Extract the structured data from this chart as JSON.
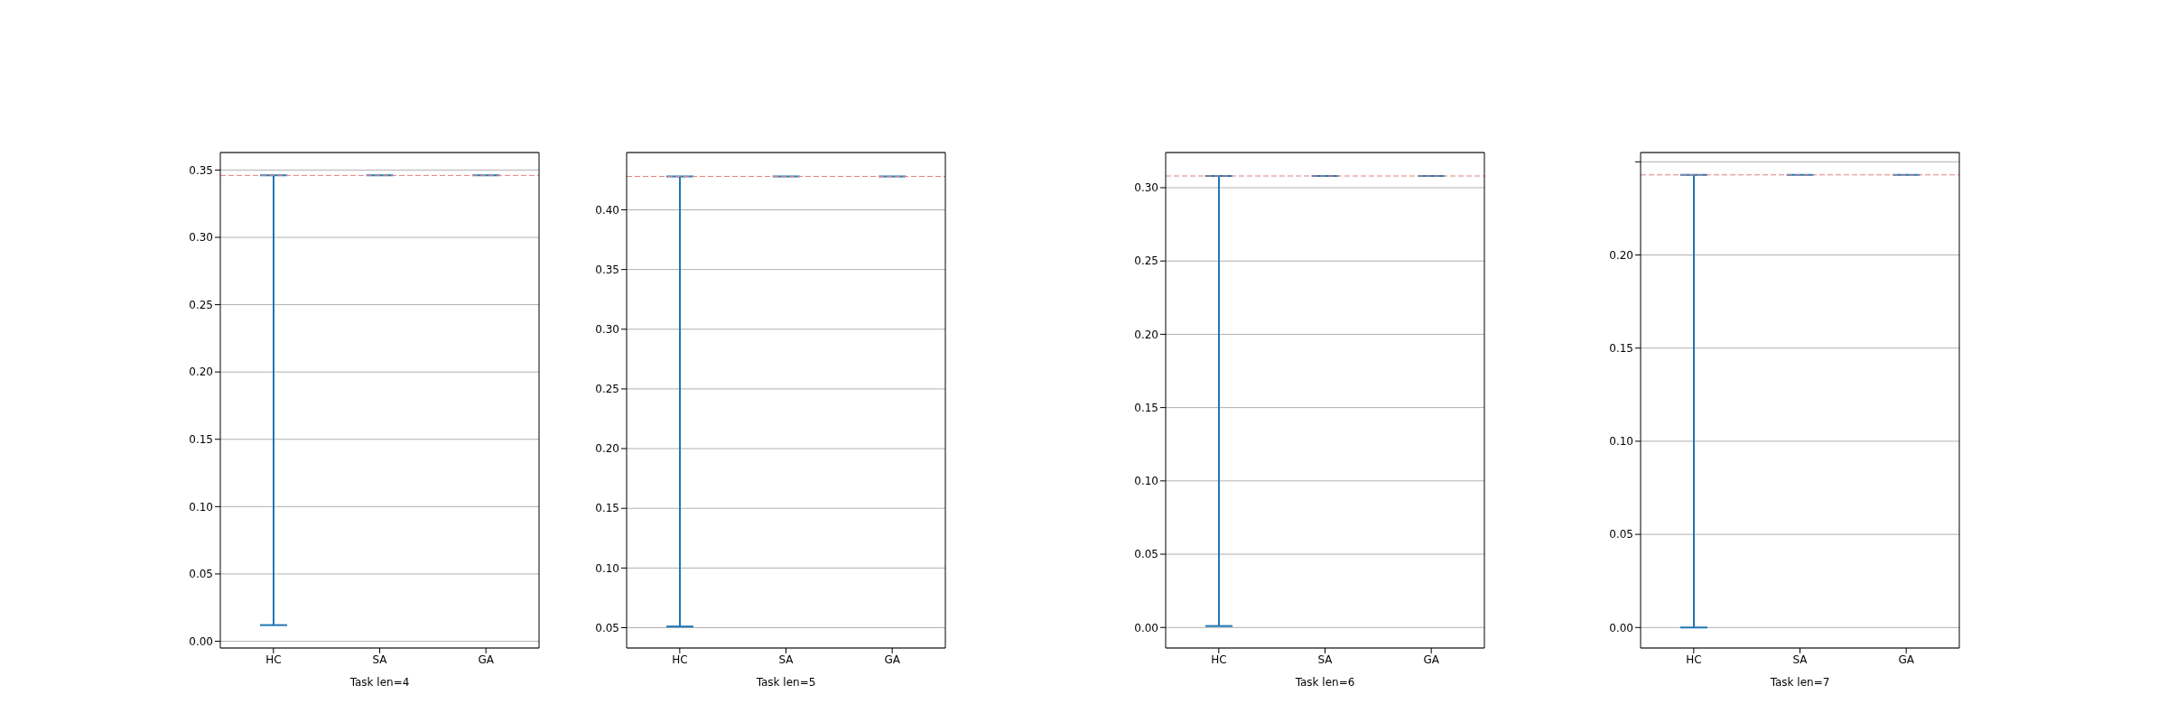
{
  "chart_data": [
    {
      "type": "bar",
      "xlabel": "Task len=4",
      "categories": [
        "HC",
        "SA",
        "GA"
      ],
      "series": [
        {
          "color": "#1f77b4",
          "base": [
            0.012,
            0.346,
            0.346
          ],
          "values": [
            0.334,
            0,
            0
          ]
        }
      ],
      "ylim": [
        -0.005,
        0.363
      ],
      "yticks": [
        {
          "value": 0,
          "label": "0.00"
        },
        {
          "value": 0.05,
          "label": "0.05"
        },
        {
          "value": 0.1,
          "label": "0.10"
        },
        {
          "value": 0.15,
          "label": "0.15"
        },
        {
          "value": 0.2,
          "label": "0.20"
        },
        {
          "value": 0.25,
          "label": "0.25"
        },
        {
          "value": 0.3,
          "label": "0.30"
        },
        {
          "value": 0.35,
          "label": "0.35"
        }
      ],
      "grid": "y",
      "ref_lines": [
        {
          "axis": "y",
          "value": 0.346,
          "color": "#e08080",
          "line_style": "dashed"
        }
      ]
    },
    {
      "type": "bar",
      "xlabel": "Task len=5",
      "categories": [
        "HC",
        "SA",
        "GA"
      ],
      "series": [
        {
          "color": "#1f77b4",
          "base": [
            0.051,
            0.428,
            0.428
          ],
          "values": [
            0.377,
            0,
            0
          ]
        }
      ],
      "ylim": [
        0.033,
        0.448
      ],
      "yticks": [
        {
          "value": 0.05,
          "label": "0.05"
        },
        {
          "value": 0.1,
          "label": "0.10"
        },
        {
          "value": 0.15,
          "label": "0.15"
        },
        {
          "value": 0.2,
          "label": "0.20"
        },
        {
          "value": 0.25,
          "label": "0.25"
        },
        {
          "value": 0.3,
          "label": "0.30"
        },
        {
          "value": 0.35,
          "label": "0.35"
        },
        {
          "value": 0.4,
          "label": "0.40"
        }
      ],
      "grid": "y",
      "ref_lines": [
        {
          "axis": "y",
          "value": 0.428,
          "color": "#e08080",
          "line_style": "dashed"
        }
      ]
    },
    {
      "type": "bar",
      "xlabel": "Task len=6",
      "categories": [
        "HC",
        "SA",
        "GA"
      ],
      "series": [
        {
          "color": "#1f77b4",
          "base": [
            0.001,
            0.308,
            0.308
          ],
          "values": [
            0.307,
            0,
            0
          ]
        }
      ],
      "ylim": [
        -0.014,
        0.324
      ],
      "yticks": [
        {
          "value": 0,
          "label": "0.00"
        },
        {
          "value": 0.05,
          "label": "0.05"
        },
        {
          "value": 0.1,
          "label": "0.10"
        },
        {
          "value": 0.15,
          "label": "0.15"
        },
        {
          "value": 0.2,
          "label": "0.20"
        },
        {
          "value": 0.25,
          "label": "0.25"
        },
        {
          "value": 0.3,
          "label": "0.30"
        }
      ],
      "grid": "y",
      "ref_lines": [
        {
          "axis": "y",
          "value": 0.308,
          "color": "#e08080",
          "line_style": "dashed"
        }
      ]
    },
    {
      "type": "bar",
      "xlabel": "Task len=7",
      "categories": [
        "HC",
        "SA",
        "GA"
      ],
      "series": [
        {
          "color": "#1f77b4",
          "base": [
            0,
            0.243,
            0.243
          ],
          "values": [
            0.243,
            0,
            0
          ]
        }
      ],
      "ylim": [
        -0.011,
        0.255
      ],
      "yticks": [
        {
          "value": 0,
          "label": "0.00"
        },
        {
          "value": 0.05,
          "label": "0.05"
        },
        {
          "value": 0.1,
          "label": "0.10"
        },
        {
          "value": 0.15,
          "label": "0.15"
        },
        {
          "value": 0.2,
          "label": "0.20"
        },
        {
          "value": 0.25,
          "label": null
        }
      ],
      "grid": "y",
      "ref_lines": [
        {
          "axis": "y",
          "value": 0.243,
          "color": "#e08080",
          "line_style": "dashed"
        }
      ]
    }
  ]
}
